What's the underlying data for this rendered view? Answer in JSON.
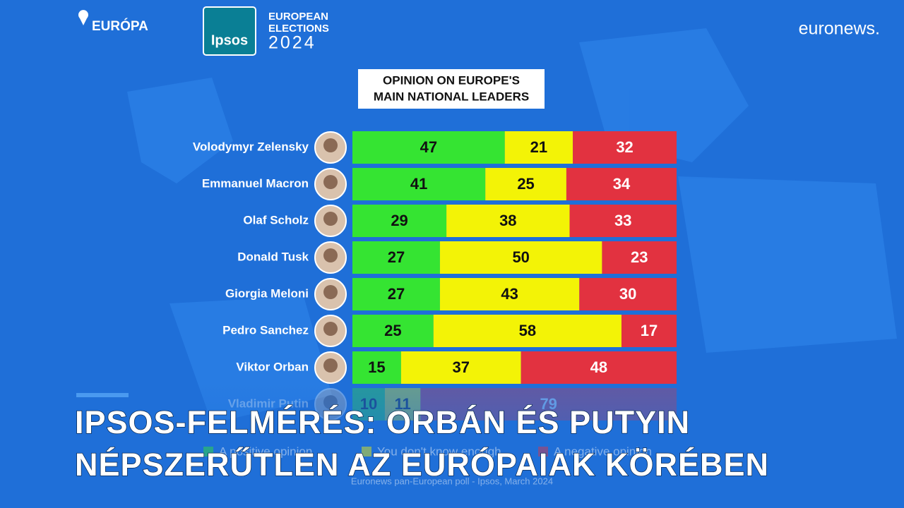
{
  "header": {
    "location": "EURÓPA",
    "logo": "Ipsos",
    "logo_lines": [
      "EUROPEAN",
      "ELECTIONS",
      "2024"
    ],
    "brand": "euronews."
  },
  "headline": [
    "IPSOS-FELMÉRÉS: ORBÁN ÉS PUTYIN",
    "NÉPSZERŰTLEN AZ EURÓPAIAK KÖRÉBEN"
  ],
  "chart_data": {
    "type": "bar",
    "orientation": "horizontal",
    "stacked": true,
    "title": [
      "OPINION ON EUROPE'S",
      "MAIN NATIONAL LEADERS"
    ],
    "categories": [
      "Volodymyr Zelensky",
      "Emmanuel Macron",
      "Olaf Scholz",
      "Donald Tusk",
      "Giorgia Meloni",
      "Pedro Sanchez",
      "Viktor Orban",
      "Vladimir Putin"
    ],
    "xlim": [
      0,
      100
    ],
    "series": [
      {
        "name": "A positive opinion",
        "color": "#35e432",
        "values": [
          47,
          41,
          29,
          27,
          27,
          25,
          15,
          10
        ]
      },
      {
        "name": "You don't know enough",
        "color": "#f3f306",
        "values": [
          21,
          25,
          38,
          50,
          43,
          58,
          37,
          11
        ]
      },
      {
        "name": "A negative opinion",
        "color": "#e23240",
        "values": [
          32,
          34,
          33,
          23,
          30,
          17,
          48,
          79
        ]
      }
    ],
    "legend": "bottom",
    "source": "Euronews pan-European poll - Ipsos, March 2024"
  }
}
